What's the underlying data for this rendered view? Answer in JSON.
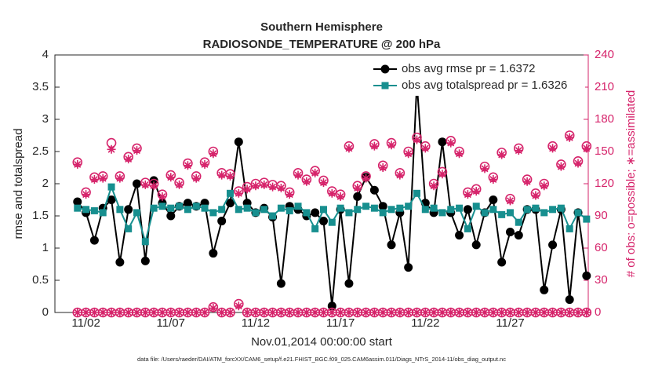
{
  "chart_data": {
    "type": "line",
    "title": "Southern Hemisphere",
    "subtitle": "RADIOSONDE_TEMPERATURE @ 200 hPa",
    "xlabel": "Nov.01,2014 00:00:00 start",
    "ylabel": "rmse and totalspread",
    "y2label": "# of obs: o=possible; ∗=assimilated",
    "footnote": "data file: /Users/raeder/DAI/ATM_forcXX/CAM6_setup/f.e21.FHIST_BGC.f09_025.CAM6assim.011/Diags_NTrS_2014-11/obs_diag_output.nc",
    "legend": "upper right",
    "xlim": [
      0.17,
      31.6
    ],
    "xticks": [
      {
        "value": 2,
        "label": "11/02"
      },
      {
        "value": 7,
        "label": "11/07"
      },
      {
        "value": 12,
        "label": "11/12"
      },
      {
        "value": 17,
        "label": "11/17"
      },
      {
        "value": 22,
        "label": "11/22"
      },
      {
        "value": 27,
        "label": "11/27"
      }
    ],
    "ylim": [
      0,
      4
    ],
    "yticks": [
      0,
      0.5,
      1,
      1.5,
      2,
      2.5,
      3,
      3.5,
      4
    ],
    "y2lim": [
      0,
      240
    ],
    "y2ticks": [
      0,
      30,
      60,
      90,
      120,
      150,
      180,
      210,
      240
    ],
    "x": [
      1.5,
      2,
      2.5,
      3,
      3.5,
      4,
      4.5,
      5,
      5.5,
      6,
      6.5,
      7,
      7.5,
      8,
      8.5,
      9,
      9.5,
      10,
      10.5,
      11,
      11.5,
      12,
      12.5,
      13,
      13.5,
      14,
      14.5,
      15,
      15.5,
      16,
      16.5,
      17,
      17.5,
      18,
      18.5,
      19,
      19.5,
      20,
      20.5,
      21,
      21.5,
      22,
      22.5,
      23,
      23.5,
      24,
      24.5,
      25,
      25.5,
      26,
      26.5,
      27,
      27.5,
      28,
      28.5,
      29,
      29.5,
      30,
      30.5,
      31,
      31.5
    ],
    "series": [
      {
        "name": "obs avg rmse pr = 1.6372",
        "color": "#000000",
        "marker": "circle",
        "values": [
          1.72,
          1.55,
          1.12,
          1.62,
          1.75,
          0.78,
          1.6,
          2.0,
          0.8,
          2.05,
          1.7,
          1.5,
          1.65,
          1.7,
          1.65,
          1.7,
          0.92,
          1.42,
          1.7,
          2.65,
          1.7,
          1.55,
          1.62,
          1.48,
          0.45,
          1.65,
          1.6,
          1.5,
          1.55,
          1.42,
          0.1,
          1.6,
          0.45,
          1.8,
          2.1,
          1.9,
          1.65,
          1.05,
          1.55,
          0.7,
          3.56,
          1.7,
          1.55,
          2.65,
          1.55,
          1.2,
          1.6,
          1.05,
          1.55,
          1.75,
          0.78,
          1.25,
          1.2,
          1.6,
          1.6,
          0.35,
          1.05,
          1.6,
          0.2,
          1.55,
          0.57
        ]
      },
      {
        "name": "obs avg totalspread pr = 1.6326",
        "color": "#178f8f",
        "marker": "square",
        "values": [
          1.62,
          1.6,
          1.58,
          1.55,
          1.95,
          1.6,
          1.3,
          1.55,
          1.1,
          1.62,
          1.65,
          1.62,
          1.65,
          1.6,
          1.65,
          1.62,
          1.55,
          1.6,
          1.85,
          1.6,
          1.62,
          1.55,
          1.6,
          1.5,
          1.62,
          1.58,
          1.65,
          1.55,
          1.3,
          1.6,
          1.4,
          1.62,
          1.55,
          1.6,
          1.65,
          1.62,
          1.55,
          1.6,
          1.62,
          1.65,
          1.85,
          1.6,
          1.62,
          1.55,
          1.6,
          1.62,
          1.3,
          1.65,
          1.55,
          1.6,
          1.52,
          1.55,
          1.4,
          1.6,
          1.62,
          1.55,
          1.6,
          1.62,
          1.3,
          1.55,
          1.45
        ]
      },
      {
        "axis": "y2",
        "color": "#d6246b",
        "marker": "open-circle",
        "values": [
          140,
          112,
          126,
          127,
          158,
          127,
          145,
          153,
          121,
          120,
          110,
          128,
          121,
          139,
          127,
          140,
          150,
          130,
          129,
          113,
          117,
          120,
          121,
          119,
          118,
          112,
          130,
          124,
          132,
          123,
          113,
          110,
          155,
          118,
          127,
          157,
          137,
          158,
          130,
          150,
          163,
          155,
          120,
          131,
          160,
          150,
          112,
          115,
          136,
          126,
          149,
          106,
          153,
          124,
          111,
          120,
          155,
          138,
          165,
          141,
          155
        ]
      },
      {
        "axis": "y2",
        "color": "#d6246b",
        "marker": "asterisk",
        "values": [
          138,
          110,
          124,
          125,
          152,
          125,
          143,
          151,
          119,
          118,
          108,
          126,
          119,
          137,
          125,
          138,
          148,
          128,
          127,
          111,
          115,
          118,
          119,
          117,
          116,
          110,
          128,
          122,
          130,
          121,
          111,
          108,
          153,
          116,
          125,
          155,
          135,
          156,
          128,
          148,
          161,
          153,
          118,
          129,
          158,
          148,
          110,
          113,
          134,
          124,
          147,
          104,
          151,
          122,
          109,
          118,
          153,
          136,
          163,
          139,
          153
        ]
      },
      {
        "axis": "y2",
        "color": "#d6246b",
        "marker": "open-circle",
        "values": [
          0,
          0,
          0,
          0,
          0,
          0,
          0,
          0,
          0,
          0,
          0,
          0,
          0,
          0,
          0,
          0,
          5,
          0,
          0,
          8,
          0,
          0,
          0,
          0,
          0,
          0,
          0,
          0,
          0,
          0,
          0,
          0,
          0,
          0,
          0,
          0,
          0,
          0,
          0,
          0,
          0,
          0,
          0,
          0,
          0,
          0,
          0,
          0,
          0,
          0,
          0,
          0,
          0,
          0,
          0,
          0,
          0,
          0,
          0,
          0,
          0
        ]
      },
      {
        "axis": "y2",
        "color": "#d6246b",
        "marker": "asterisk",
        "values": [
          0,
          0,
          0,
          0,
          0,
          0,
          0,
          0,
          0,
          0,
          0,
          0,
          0,
          0,
          0,
          0,
          4,
          0,
          0,
          6,
          0,
          0,
          0,
          0,
          0,
          0,
          0,
          0,
          0,
          0,
          0,
          0,
          0,
          0,
          0,
          0,
          0,
          0,
          0,
          0,
          0,
          0,
          0,
          0,
          0,
          0,
          0,
          0,
          0,
          0,
          0,
          0,
          0,
          0,
          0,
          0,
          0,
          0,
          0,
          0,
          0
        ]
      }
    ]
  }
}
